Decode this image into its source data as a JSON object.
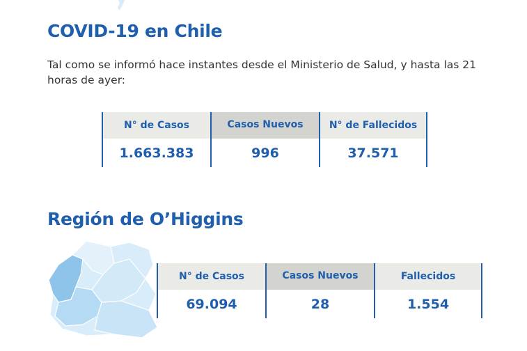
{
  "national": {
    "title": "COVID-19 en Chile",
    "intro": "Tal como se informó hace instantes desde el Ministerio de Salud, y hasta las 21 horas de ayer:",
    "stats": [
      {
        "label": "N° de Casos",
        "value": "1.663.383"
      },
      {
        "label": "Casos Nuevos",
        "value": "996"
      },
      {
        "label": "N° de Fallecidos",
        "value": "37.571"
      }
    ]
  },
  "region": {
    "title": "Región de O’Higgins",
    "stats": [
      {
        "label": "N° de Casos",
        "value": "69.094"
      },
      {
        "label": "Casos Nuevos",
        "value": "28"
      },
      {
        "label": "Fallecidos",
        "value": "1.554"
      }
    ]
  },
  "colors": {
    "accent": "#1f5fad",
    "header_bg": "#eaeae7",
    "header_bg_shaded": "#d3d3d0",
    "map_light": "#d8ecf9",
    "map_mid": "#b5daf3",
    "map_dark": "#8fc4ea"
  }
}
